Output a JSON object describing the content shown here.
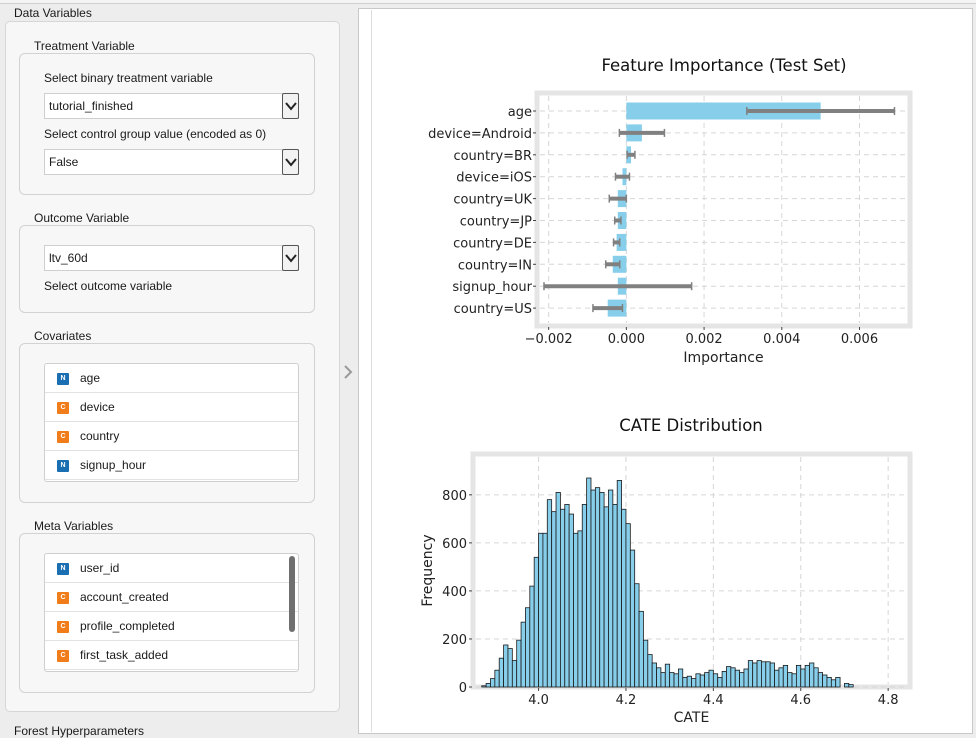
{
  "left_panel": {
    "title": "Data Variables",
    "treatment": {
      "title": "Treatment Variable",
      "select_label": "Select binary treatment variable",
      "select_value": "tutorial_finished",
      "control_label": "Select control group value (encoded as 0)",
      "control_value": "False"
    },
    "outcome": {
      "title": "Outcome Variable",
      "select_value": "ltv_60d",
      "select_label": "Select outcome variable"
    },
    "covariates": {
      "title": "Covariates",
      "items": [
        {
          "type": "N",
          "label": "age"
        },
        {
          "type": "C",
          "label": "device"
        },
        {
          "type": "C",
          "label": "country"
        },
        {
          "type": "N",
          "label": "signup_hour"
        }
      ]
    },
    "meta": {
      "title": "Meta Variables",
      "items": [
        {
          "type": "N",
          "label": "user_id"
        },
        {
          "type": "C",
          "label": "account_created"
        },
        {
          "type": "C",
          "label": "profile_completed"
        },
        {
          "type": "C",
          "label": "first_task_added"
        }
      ]
    },
    "next_section_title": "Forest Hyperparameters"
  },
  "colors": {
    "bar_fill": "#87ceeb",
    "error_bar": "#808080",
    "hist_fill": "#87ceeb",
    "badge_numeric": "#1a6fb3",
    "badge_categorical": "#f07d1a"
  },
  "chart_data": [
    {
      "type": "bar",
      "orientation": "horizontal",
      "title": "Feature Importance (Test Set)",
      "xlabel": "Importance",
      "ylabel": "",
      "categories": [
        "age",
        "device=Android",
        "country=BR",
        "device=iOS",
        "country=UK",
        "country=JP",
        "country=DE",
        "country=IN",
        "signup_hour",
        "country=US"
      ],
      "values": [
        0.005,
        0.0004,
        0.00012,
        -0.0001,
        -0.00022,
        -0.00022,
        -0.00025,
        -0.00035,
        -0.00022,
        -0.00048
      ],
      "error": [
        0.0019,
        0.00058,
        0.0001,
        0.00018,
        0.00022,
        8e-05,
        8e-05,
        0.00018,
        0.0019,
        0.00038
      ],
      "xlim": [
        -0.0023,
        0.0073
      ],
      "xticks": [
        "−0.002",
        "0.000",
        "0.002",
        "0.004",
        "0.006"
      ],
      "grid": true
    },
    {
      "type": "bar",
      "subtype": "histogram",
      "title": "CATE Distribution",
      "xlabel": "CATE",
      "ylabel": "Frequency",
      "x_start": 3.87,
      "bin_width": 0.01,
      "values": [
        5,
        15,
        35,
        70,
        120,
        175,
        160,
        110,
        195,
        270,
        330,
        420,
        540,
        640,
        640,
        780,
        730,
        810,
        740,
        760,
        720,
        640,
        650,
        760,
        870,
        820,
        830,
        810,
        750,
        820,
        760,
        860,
        740,
        680,
        570,
        430,
        315,
        195,
        135,
        100,
        80,
        60,
        95,
        60,
        55,
        75,
        40,
        45,
        35,
        55,
        50,
        60,
        70,
        55,
        40,
        65,
        85,
        80,
        70,
        60,
        75,
        110,
        100,
        110,
        105,
        105,
        100,
        70,
        80,
        90,
        60,
        55,
        90,
        75,
        90,
        100,
        80,
        60,
        50,
        40,
        30,
        40,
        0,
        15,
        10
      ],
      "xlim": [
        3.85,
        4.85
      ],
      "ylim": [
        0,
        970
      ],
      "xticks": [
        "4.0",
        "4.2",
        "4.4",
        "4.6",
        "4.8"
      ],
      "yticks": [
        "0",
        "200",
        "400",
        "600",
        "800"
      ],
      "grid": true
    }
  ]
}
